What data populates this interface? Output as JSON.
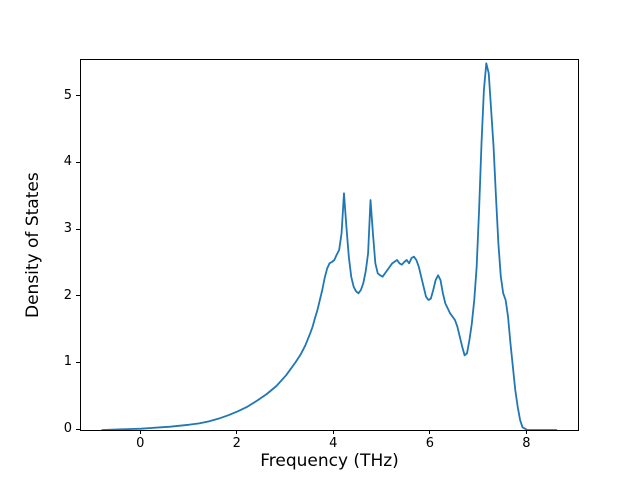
{
  "figure": {
    "background": "#ffffff",
    "line_color": "#1f77b4",
    "spine_color": "#000000"
  },
  "chart_data": {
    "type": "line",
    "title": "",
    "xlabel": "Frequency (THz)",
    "ylabel": "Density of States",
    "xlim": [
      -1.25,
      9.05
    ],
    "ylim": [
      0,
      5.55
    ],
    "xticks": [
      0,
      2,
      4,
      6,
      8
    ],
    "yticks": [
      0,
      1,
      2,
      3,
      4,
      5
    ],
    "grid": false,
    "legend": "none",
    "series": [
      {
        "name": "density-of-states",
        "color": "#1f77b4",
        "x": [
          -0.81,
          -0.6,
          -0.4,
          -0.2,
          0.0,
          0.2,
          0.4,
          0.6,
          0.8,
          1.0,
          1.2,
          1.4,
          1.6,
          1.8,
          2.0,
          2.2,
          2.4,
          2.6,
          2.8,
          3.0,
          3.1,
          3.2,
          3.3,
          3.4,
          3.5,
          3.55,
          3.6,
          3.65,
          3.7,
          3.75,
          3.8,
          3.85,
          3.9,
          3.95,
          4.0,
          4.05,
          4.1,
          4.15,
          4.2,
          4.25,
          4.3,
          4.35,
          4.4,
          4.45,
          4.5,
          4.55,
          4.6,
          4.65,
          4.7,
          4.75,
          4.8,
          4.85,
          4.9,
          4.95,
          5.0,
          5.1,
          5.2,
          5.3,
          5.35,
          5.4,
          5.45,
          5.5,
          5.55,
          5.6,
          5.65,
          5.7,
          5.75,
          5.8,
          5.85,
          5.9,
          5.95,
          6.0,
          6.05,
          6.1,
          6.15,
          6.2,
          6.25,
          6.3,
          6.4,
          6.5,
          6.55,
          6.6,
          6.65,
          6.7,
          6.75,
          6.8,
          6.85,
          6.9,
          6.95,
          7.0,
          7.05,
          7.1,
          7.15,
          7.2,
          7.25,
          7.3,
          7.35,
          7.4,
          7.45,
          7.5,
          7.55,
          7.6,
          7.65,
          7.7,
          7.75,
          7.8,
          7.85,
          7.9,
          8.0,
          8.2,
          8.4,
          8.6
        ],
        "y": [
          0,
          0.005,
          0.01,
          0.015,
          0.02,
          0.03,
          0.04,
          0.05,
          0.065,
          0.08,
          0.1,
          0.13,
          0.17,
          0.22,
          0.28,
          0.35,
          0.44,
          0.54,
          0.66,
          0.82,
          0.92,
          1.02,
          1.13,
          1.27,
          1.45,
          1.55,
          1.68,
          1.8,
          1.95,
          2.1,
          2.28,
          2.42,
          2.5,
          2.52,
          2.55,
          2.63,
          2.7,
          2.95,
          3.55,
          3.05,
          2.6,
          2.3,
          2.15,
          2.08,
          2.05,
          2.1,
          2.2,
          2.38,
          2.65,
          3.45,
          2.95,
          2.5,
          2.35,
          2.32,
          2.3,
          2.4,
          2.5,
          2.55,
          2.5,
          2.48,
          2.52,
          2.55,
          2.5,
          2.58,
          2.6,
          2.55,
          2.45,
          2.3,
          2.15,
          2.0,
          1.95,
          1.97,
          2.1,
          2.25,
          2.32,
          2.25,
          2.05,
          1.9,
          1.75,
          1.65,
          1.55,
          1.4,
          1.25,
          1.12,
          1.15,
          1.35,
          1.6,
          1.95,
          2.45,
          3.3,
          4.3,
          5.1,
          5.5,
          5.35,
          4.8,
          4.25,
          3.5,
          2.8,
          2.3,
          2.05,
          1.95,
          1.7,
          1.3,
          0.95,
          0.6,
          0.35,
          0.15,
          0.04,
          0.0,
          0.0,
          0.0,
          0.0
        ]
      }
    ]
  }
}
